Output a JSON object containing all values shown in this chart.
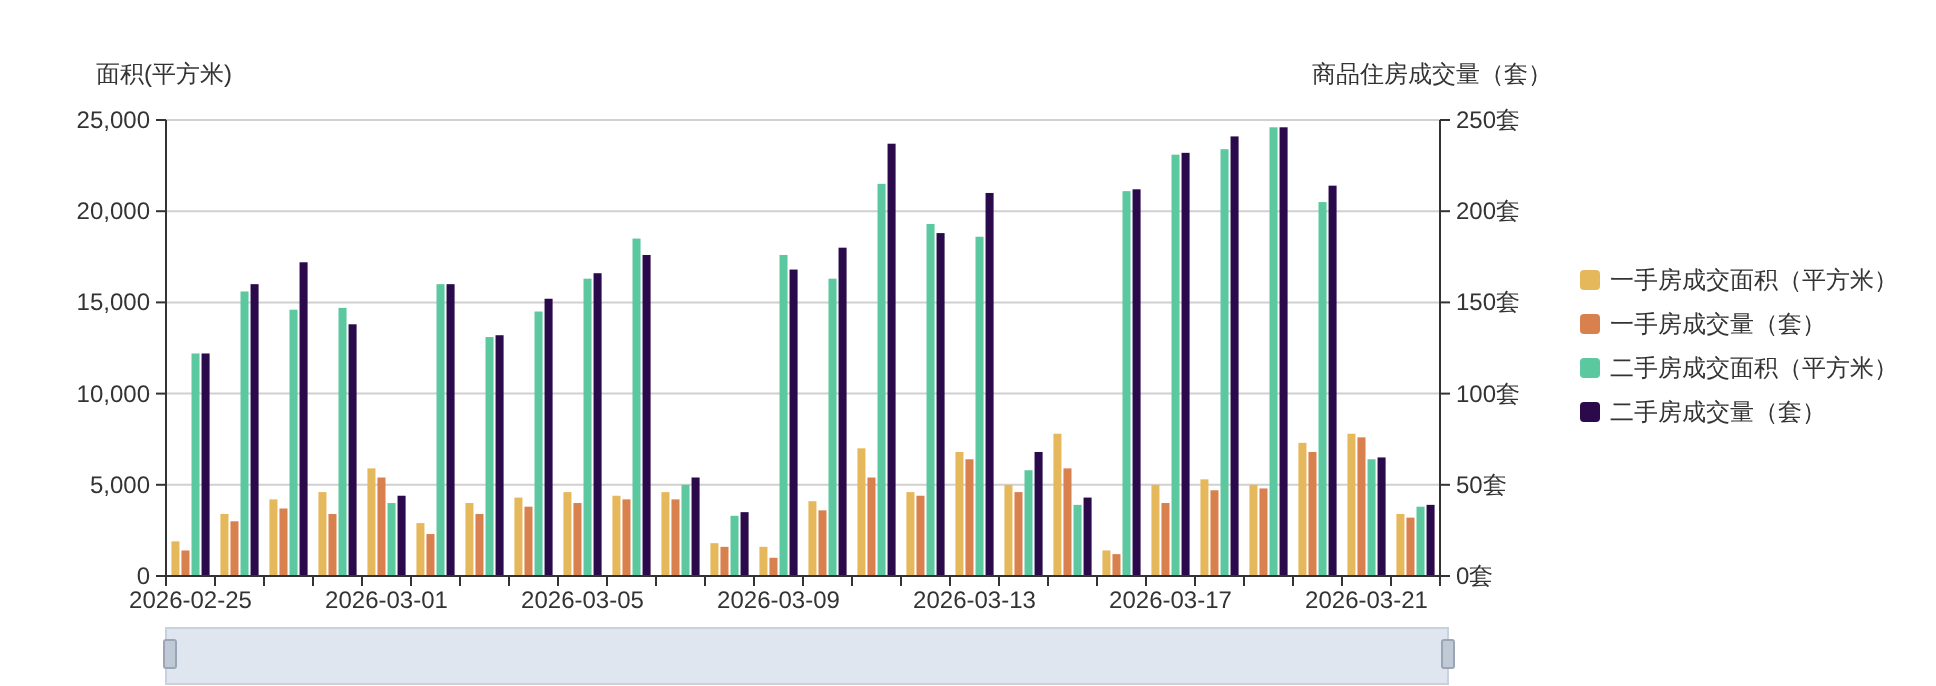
{
  "chart_data": {
    "type": "bar",
    "ylabel": "面积(平方米)",
    "y2label": "商品住房成交量（套）",
    "categories": [
      "2026-02-25",
      null,
      null,
      null,
      "2026-03-01",
      null,
      null,
      null,
      "2026-03-05",
      null,
      null,
      null,
      "2026-03-09",
      null,
      null,
      null,
      "2026-03-13",
      null,
      null,
      null,
      "2026-03-17",
      null,
      null,
      null,
      "2026-03-21",
      null
    ],
    "series": [
      {
        "name": "一手房成交面积（平方米）",
        "color": "#e6b85c",
        "values": [
          1900,
          3400,
          4200,
          4600,
          5900,
          2900,
          4000,
          4300,
          4600,
          4400,
          4600,
          1800,
          1600,
          4100,
          7000,
          4600,
          6800,
          5000,
          7800,
          1400,
          5000,
          5300,
          5000,
          7300,
          7800,
          3400
        ]
      },
      {
        "name": "一手房成交量（套）",
        "color": "#d9804f",
        "axis": "y2",
        "values": [
          14,
          30,
          37,
          34,
          54,
          23,
          34,
          38,
          40,
          42,
          42,
          16,
          10,
          36,
          54,
          44,
          64,
          46,
          59,
          12,
          40,
          47,
          48,
          68,
          76,
          32
        ]
      },
      {
        "name": "二手房成交面积（平方米）",
        "color": "#5cc8a0",
        "values": [
          12200,
          15600,
          14600,
          14700,
          4000,
          16000,
          13100,
          14500,
          16300,
          18500,
          5000,
          3300,
          17600,
          16300,
          21500,
          19300,
          18600,
          5800,
          3900,
          21100,
          23100,
          23400,
          24600,
          20500,
          6400,
          3800
        ]
      },
      {
        "name": "二手房成交量（套）",
        "color": "#2a0a4a",
        "axis": "y2",
        "values": [
          122,
          160,
          172,
          138,
          44,
          160,
          132,
          152,
          166,
          176,
          54,
          35,
          168,
          180,
          237,
          188,
          210,
          68,
          43,
          212,
          232,
          241,
          246,
          214,
          65,
          39
        ]
      }
    ],
    "ylim": [
      0,
      25000
    ],
    "yticks": [
      {
        "value": 0,
        "label": "0"
      },
      {
        "value": 5000,
        "label": "5,000"
      },
      {
        "value": 10000,
        "label": "10,000"
      },
      {
        "value": 15000,
        "label": "15,000"
      },
      {
        "value": 20000,
        "label": "20,000"
      },
      {
        "value": 25000,
        "label": "25,000"
      }
    ],
    "y2lim": [
      0,
      250
    ],
    "y2ticks": [
      {
        "value": 0,
        "label": "0套"
      },
      {
        "value": 50,
        "label": "50套"
      },
      {
        "value": 100,
        "label": "100套"
      },
      {
        "value": 150,
        "label": "150套"
      },
      {
        "value": 200,
        "label": "200套"
      },
      {
        "value": 250,
        "label": "250套"
      }
    ],
    "grid": "y",
    "legend": "right"
  }
}
